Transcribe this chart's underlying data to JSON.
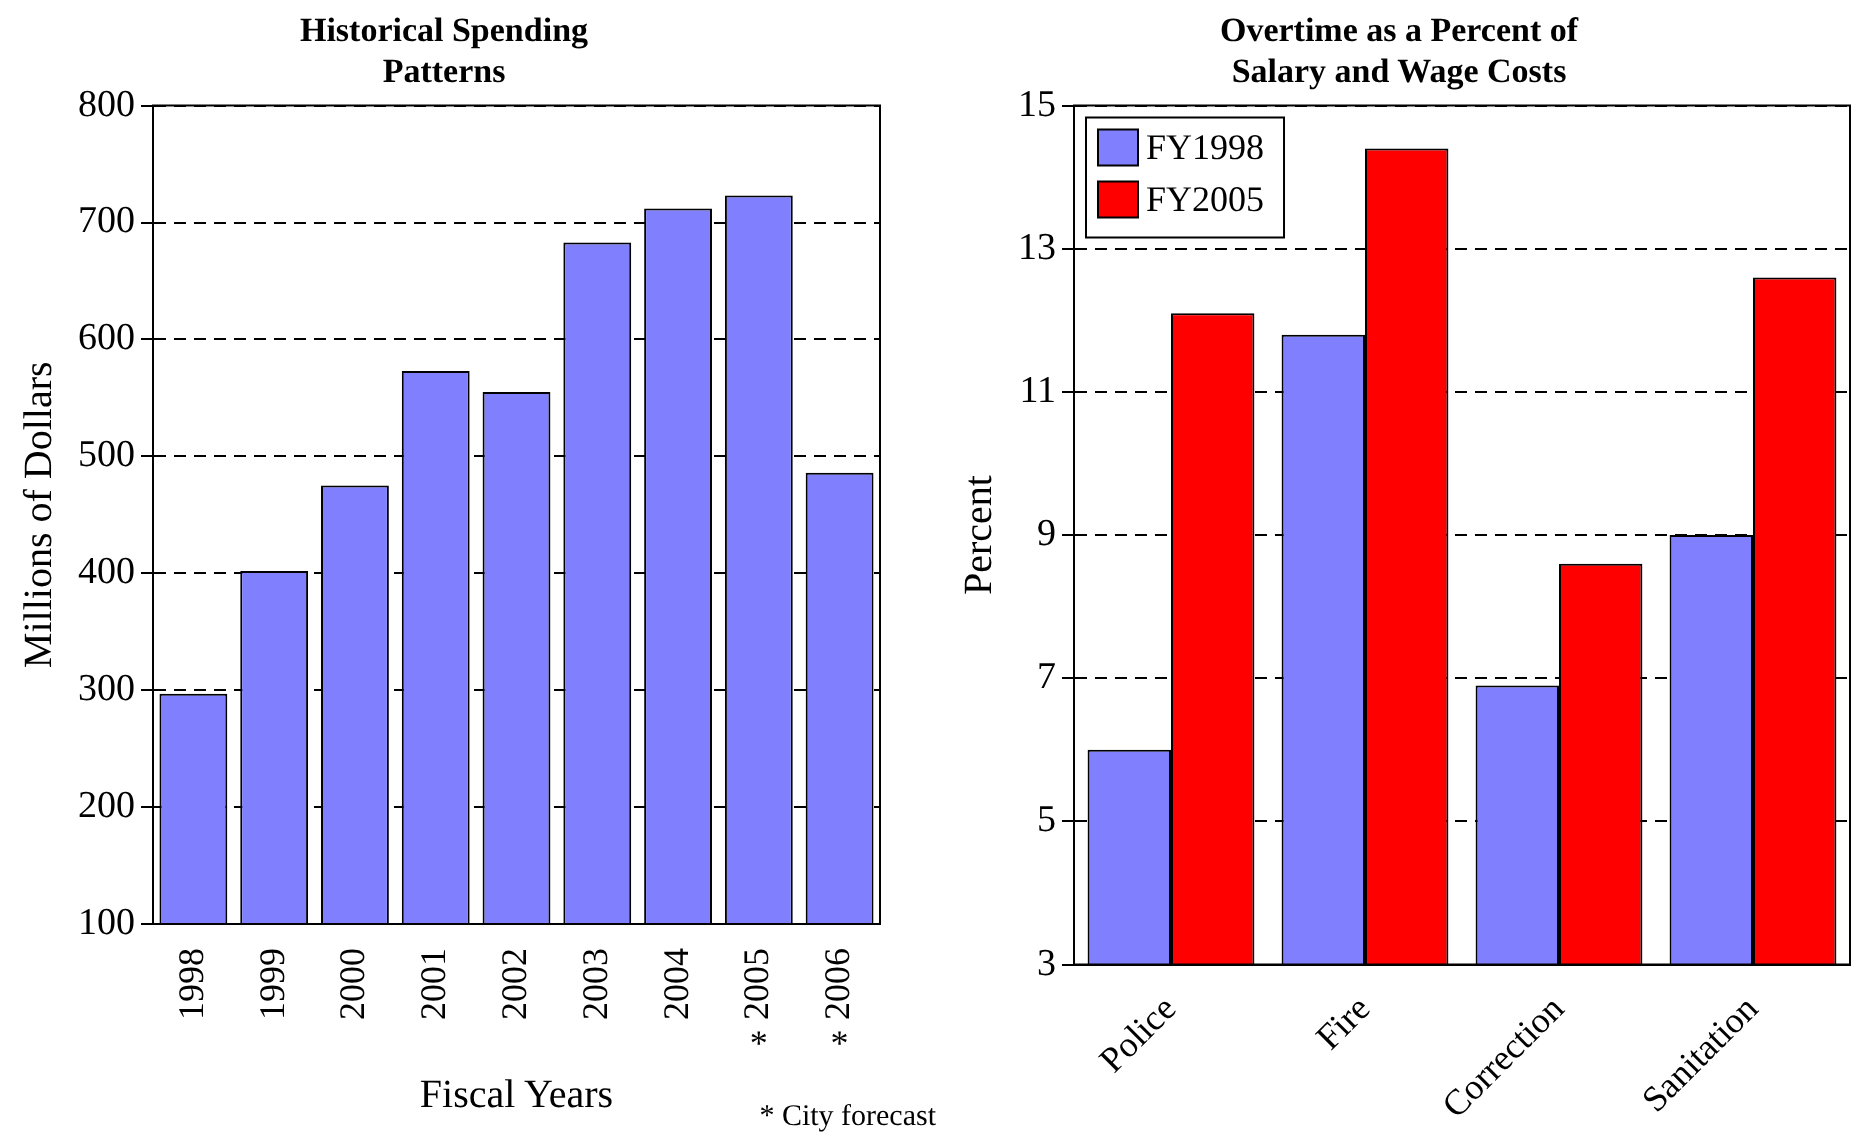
{
  "chart_data": [
    {
      "type": "bar",
      "title": "Historical Spending Patterns",
      "xlabel": "Fiscal Years",
      "ylabel": "Millions of Dollars",
      "categories": [
        "1998",
        "1999",
        "2000",
        "2001",
        "2002",
        "2003",
        "2004",
        "2005",
        "2006"
      ],
      "values": [
        297,
        402,
        475,
        573,
        555,
        683,
        712,
        723,
        486
      ],
      "color": "#8080ff",
      "ylim": [
        100,
        800
      ],
      "yticks": [
        100,
        200,
        300,
        400,
        500,
        600,
        700,
        800
      ],
      "grid": "y",
      "legend": false,
      "annotations": [
        {
          "text": "*",
          "x": "2005"
        },
        {
          "text": "*",
          "x": "2006"
        },
        "* City forecast"
      ]
    },
    {
      "type": "bar",
      "title": "Overtime as a Percent of Salary and Wage Costs",
      "ylabel": "Percent",
      "categories": [
        "Police",
        "Fire",
        "Correction",
        "Sanitation"
      ],
      "series": [
        {
          "name": "FY1998",
          "color": "#8080ff",
          "values": [
            6.0,
            11.8,
            6.9,
            9.0
          ]
        },
        {
          "name": "FY2005",
          "color": "#ff0000",
          "values": [
            12.1,
            14.4,
            8.6,
            12.6
          ]
        }
      ],
      "ylim": [
        3,
        15
      ],
      "yticks": [
        3,
        5,
        7,
        9,
        11,
        13,
        15
      ],
      "grid": "y",
      "legend": "top left"
    }
  ]
}
